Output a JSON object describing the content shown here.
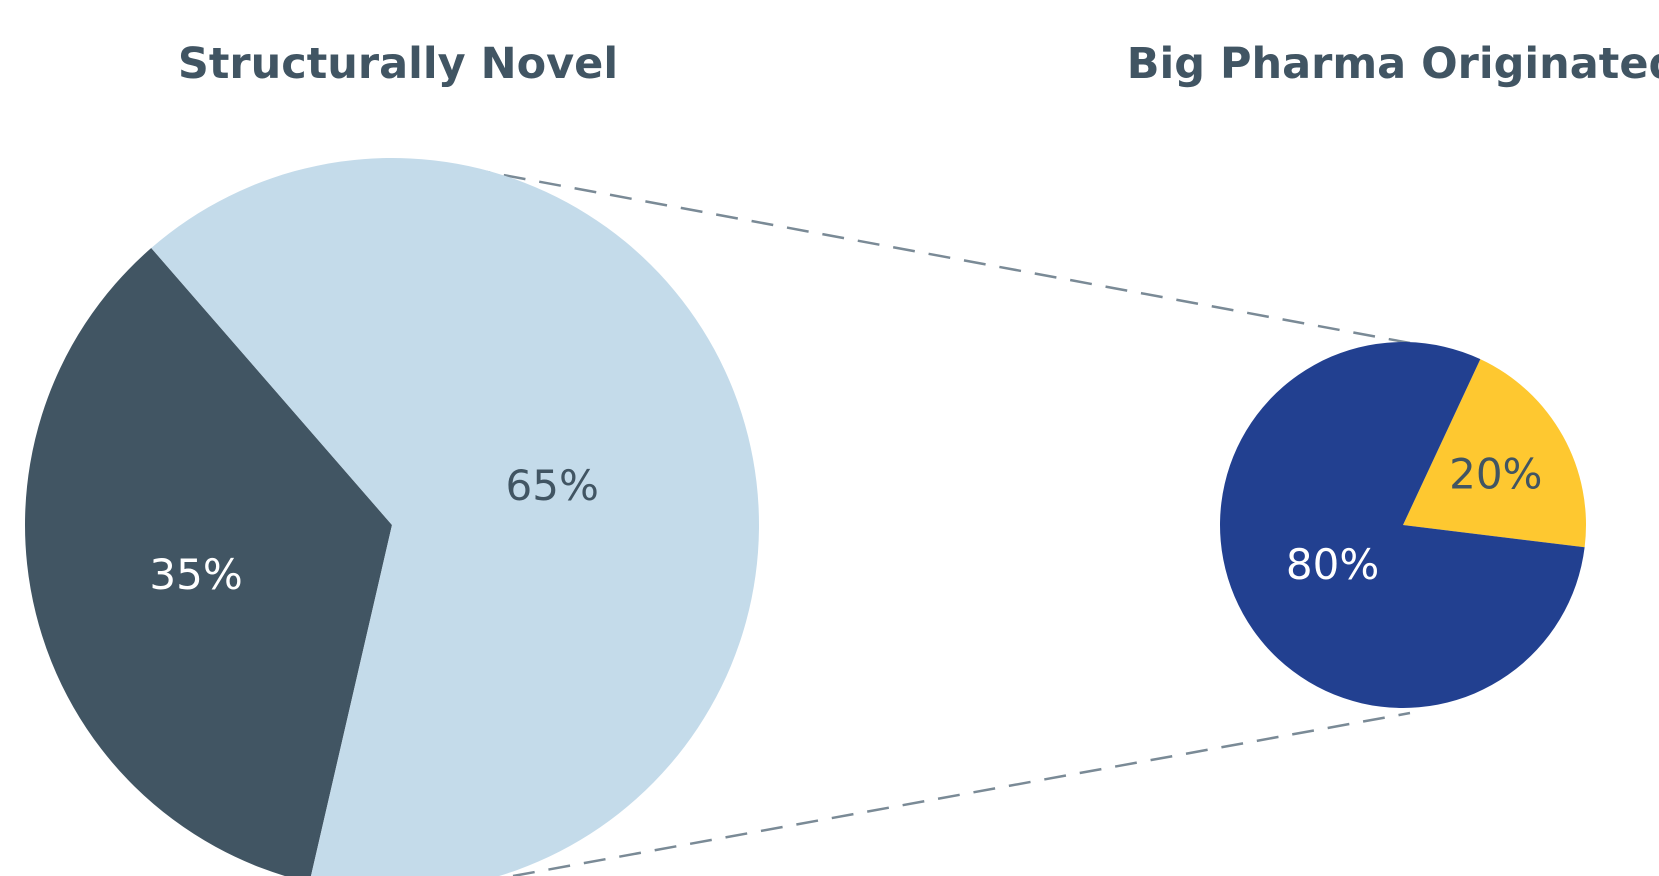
{
  "chart_data": [
    {
      "type": "pie",
      "title": "Structurally Novel",
      "slices": [
        {
          "value": 35,
          "label": "35%",
          "color": "#415563",
          "label_color": "#ffffff"
        },
        {
          "value": 65,
          "label": "65%",
          "color": "#c4dbea",
          "label_color": "#415563"
        }
      ]
    },
    {
      "type": "pie",
      "title": "Big Pharma Originated",
      "slices": [
        {
          "value": 20,
          "label": "20%",
          "color": "#fec830",
          "label_color": "#415563"
        },
        {
          "value": 80,
          "label": "80%",
          "color": "#224090",
          "label_color": "#ffffff"
        }
      ]
    }
  ],
  "colors": {
    "title": "#415563",
    "connector": "#7a8a96"
  }
}
